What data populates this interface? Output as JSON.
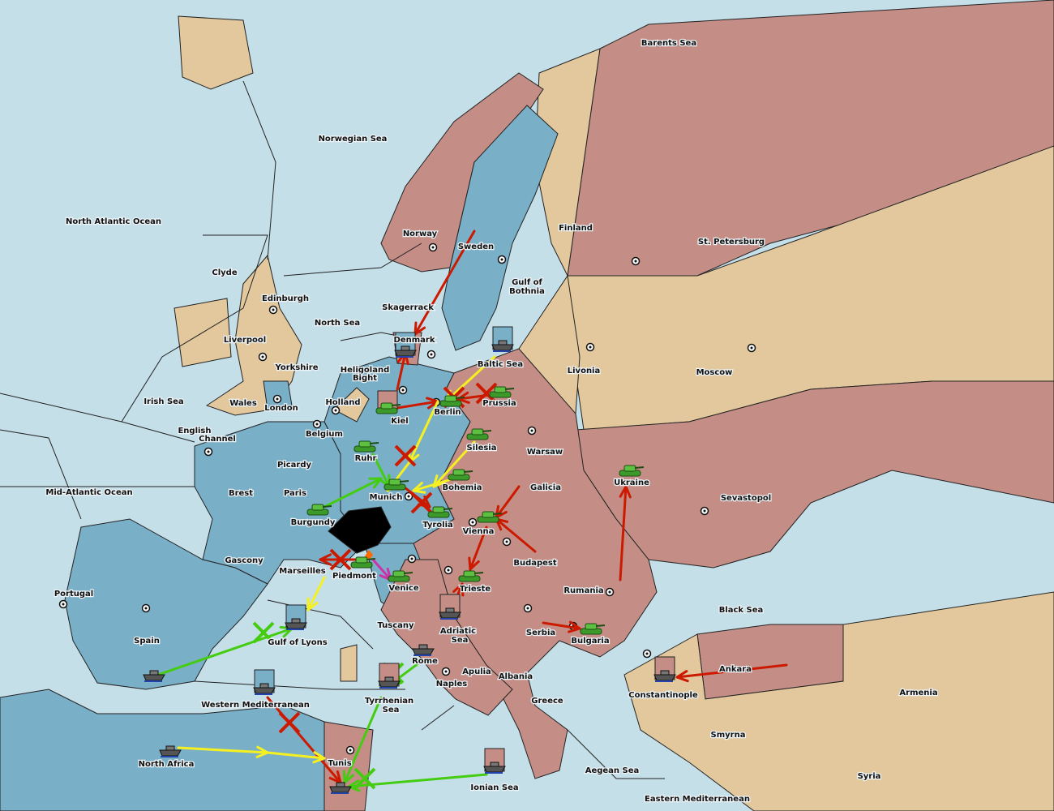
{
  "colors": {
    "sea": "#c5dfe9",
    "neutral_land": "#e2c89c",
    "power_blue": "#7aafc8",
    "power_pink": "#c48e86",
    "order_red": "#cc1a00",
    "order_yellow": "#f5f020",
    "order_green": "#44cc11",
    "order_magenta": "#cc33aa",
    "dislodged_region": "#000000"
  },
  "labels": [
    "Barents Sea",
    "Norwegian Sea",
    "North Atlantic Ocean",
    "Finland",
    "St. Petersburg",
    "Norway",
    "Sweden",
    "Clyde",
    "Edinburgh",
    "Gulf of",
    "Bothnia",
    "Skagerrack",
    "North Sea",
    "Liverpool",
    "Denmark",
    "Baltic Sea",
    "Livonia",
    "Moscow",
    "Yorkshire",
    "Heligoland",
    "Bight",
    "Irish Sea",
    "Wales",
    "Holland",
    "Prussia",
    "London",
    "Kiel",
    "Berlin",
    "English",
    "Channel",
    "Belgium",
    "Warsaw",
    "Silesia",
    "Ruhr",
    "Picardy",
    "Ukraine",
    "Galicia",
    "Bohemia",
    "Mid-Atlantic Ocean",
    "Brest",
    "Paris",
    "Munich",
    "Sevastopol",
    "Burgundy",
    "Tyrolia",
    "Vienna",
    "Gascony",
    "Budapest",
    "Marseilles",
    "Piedmont",
    "Venice",
    "Trieste",
    "Rumania",
    "Portugal",
    "Black Sea",
    "Tuscany",
    "Adriatic",
    "Sea",
    "Serbia",
    "Bulgaria",
    "Spain",
    "Gulf of Lyons",
    "Rome",
    "Apulia",
    "Ankara",
    "Albania",
    "Naples",
    "Armenia",
    "Constantinople",
    "Tyrrhenian",
    "Sea",
    "Western Mediterranean",
    "Greece",
    "Smyrna",
    "North Africa",
    "Tunis",
    "Aegean Sea",
    "Syria",
    "Ionian Sea",
    "Eastern Mediterranean"
  ],
  "units": [
    {
      "type": "army",
      "icon": "tank-icon"
    },
    {
      "type": "army",
      "icon": "tank-icon"
    },
    {
      "type": "army",
      "icon": "tank-icon"
    },
    {
      "type": "army",
      "icon": "tank-icon"
    },
    {
      "type": "army",
      "icon": "tank-icon"
    },
    {
      "type": "army",
      "icon": "tank-icon"
    },
    {
      "type": "army",
      "icon": "tank-icon"
    },
    {
      "type": "army",
      "icon": "tank-icon"
    },
    {
      "type": "army",
      "icon": "tank-icon"
    },
    {
      "type": "army",
      "icon": "tank-icon"
    },
    {
      "type": "army",
      "icon": "tank-icon"
    },
    {
      "type": "army",
      "icon": "tank-icon"
    },
    {
      "type": "army",
      "icon": "tank-icon"
    },
    {
      "type": "army",
      "icon": "tank-icon"
    },
    {
      "type": "army",
      "icon": "tank-icon"
    },
    {
      "type": "fleet",
      "icon": "battleship-icon"
    },
    {
      "type": "fleet",
      "icon": "battleship-icon"
    },
    {
      "type": "fleet",
      "icon": "battleship-icon"
    },
    {
      "type": "fleet",
      "icon": "battleship-icon"
    },
    {
      "type": "fleet",
      "icon": "battleship-icon"
    },
    {
      "type": "fleet",
      "icon": "battleship-icon"
    },
    {
      "type": "fleet",
      "icon": "battleship-icon"
    },
    {
      "type": "fleet",
      "icon": "battleship-icon"
    },
    {
      "type": "fleet",
      "icon": "battleship-icon"
    },
    {
      "type": "fleet",
      "icon": "battleship-icon"
    },
    {
      "type": "fleet",
      "icon": "battleship-icon"
    },
    {
      "type": "fleet",
      "icon": "battleship-icon"
    }
  ]
}
